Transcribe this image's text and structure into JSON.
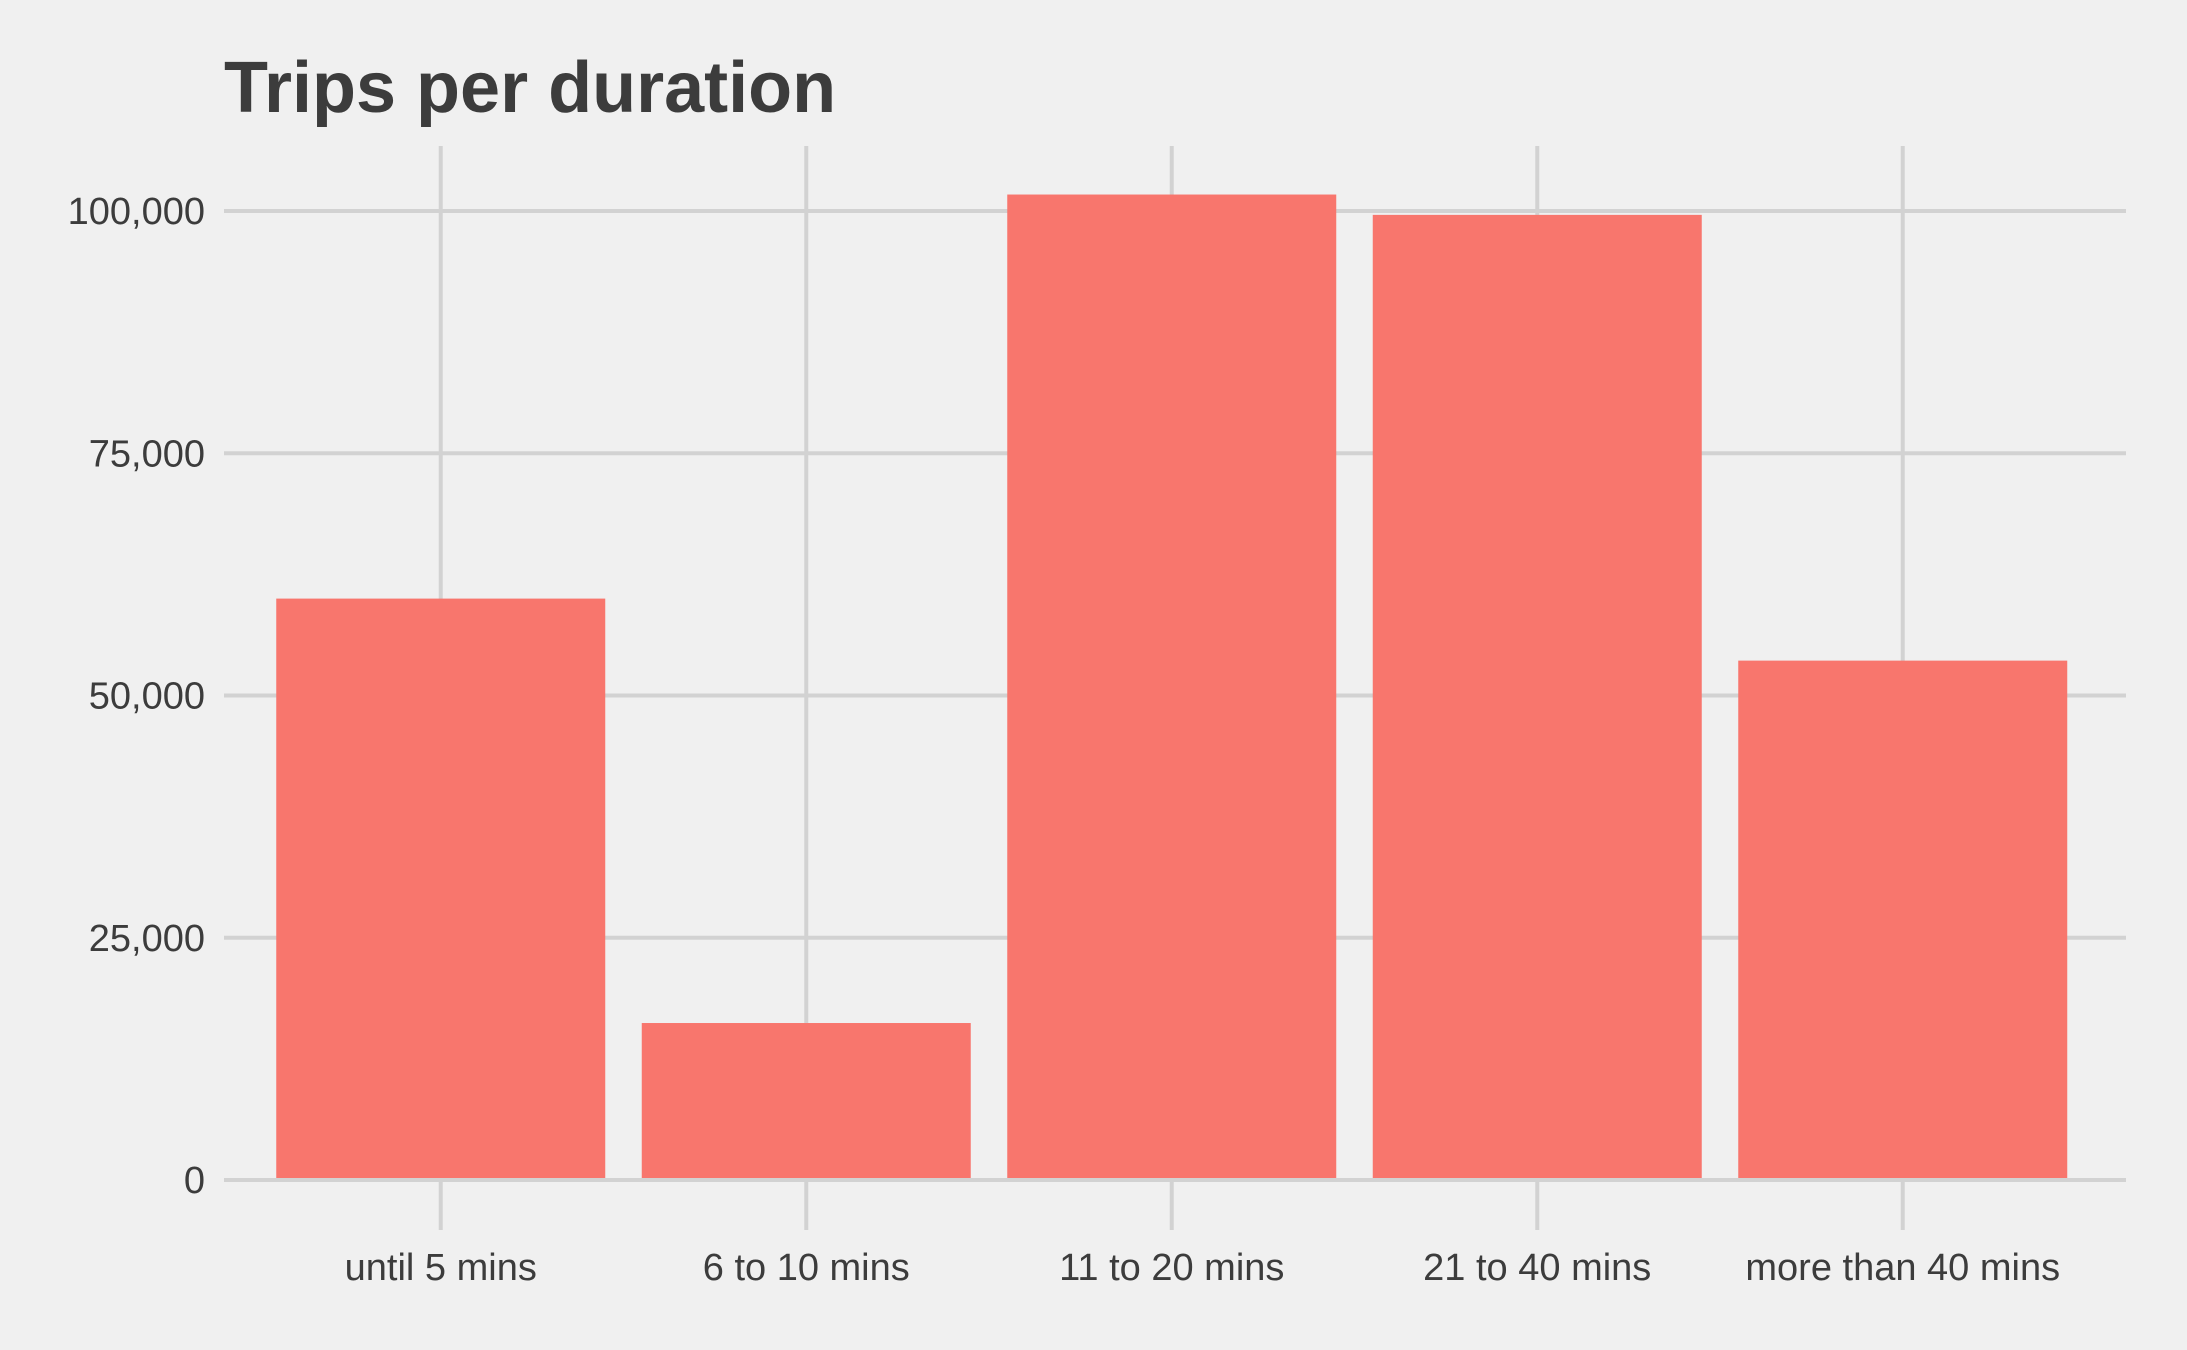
{
  "chart_data": {
    "type": "bar",
    "title": "Trips per duration",
    "xlabel": "",
    "ylabel": "",
    "categories": [
      "until 5 mins",
      "6 to 10 mins",
      "11 to 20 mins",
      "21 to 40 mins",
      "more than 40 mins"
    ],
    "values": [
      60000,
      16200,
      101700,
      99600,
      53600
    ],
    "ylim": [
      0,
      107000
    ],
    "yticks": [
      0,
      25000,
      50000,
      75000,
      100000
    ],
    "ytick_labels": [
      "0",
      "25,000",
      "50,000",
      "75,000",
      "100,000"
    ],
    "grid": true,
    "legend": "none",
    "colors": {
      "bar": "#f8766d",
      "background": "#f0f0f0",
      "grid": "#d2d2d2",
      "text": "#3c3c3c"
    }
  }
}
